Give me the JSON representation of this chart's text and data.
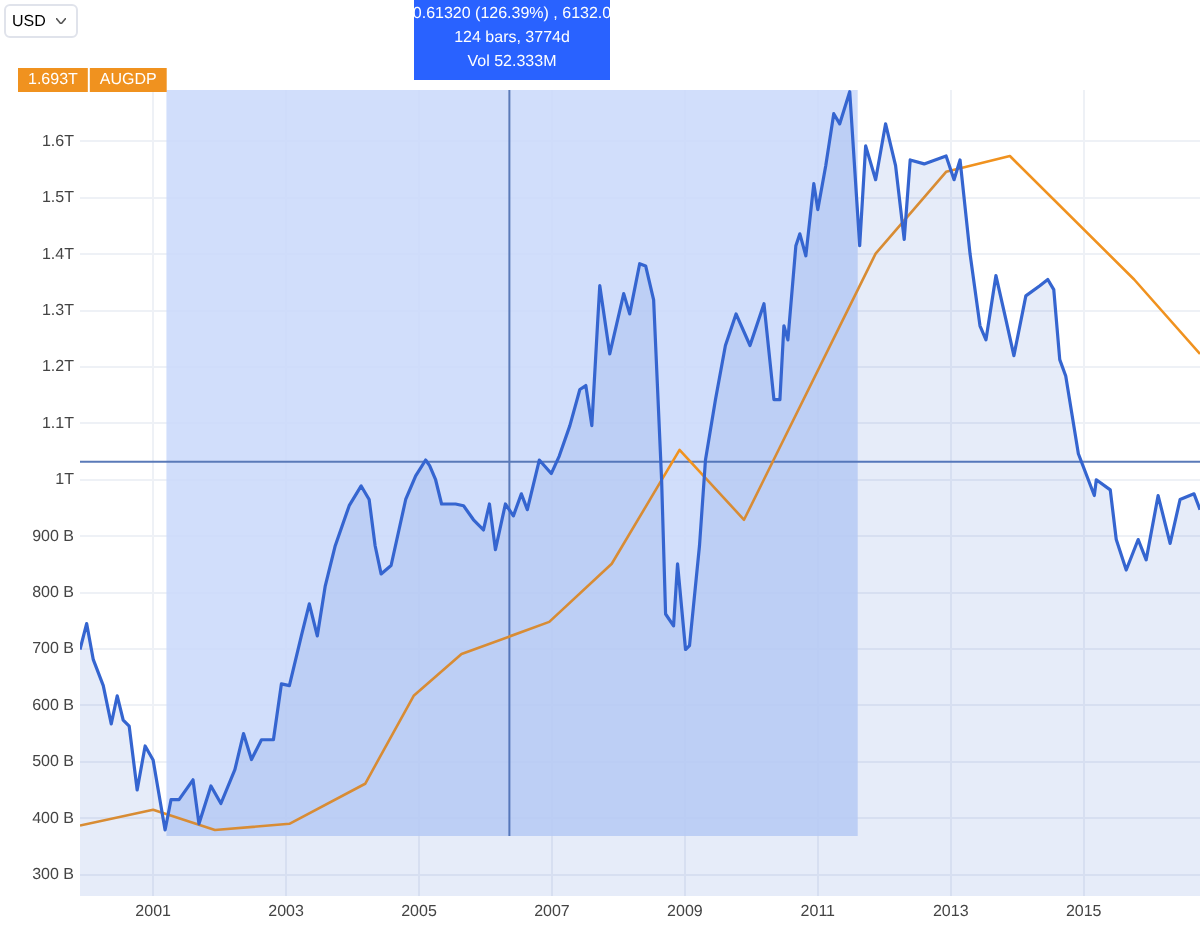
{
  "chart_data": {
    "type": "area",
    "annotations": [
      "USD",
      "0.61320 (126.39%) , 6132.0",
      "124 bars, 3774d",
      "Vol 52.333M",
      "1.693T"
    ],
    "xlim": [
      1999.9,
      2016.75
    ],
    "xticks": [
      2001,
      2003,
      2005,
      2007,
      2009,
      2011,
      2013,
      2015
    ],
    "ylim": [
      262000000000.0,
      1691000000000.0
    ],
    "yticks": [
      {
        "value": 300000000000.0,
        "label": "300 B"
      },
      {
        "value": 400000000000.0,
        "label": "400 B"
      },
      {
        "value": 500000000000.0,
        "label": "500 B"
      },
      {
        "value": 600000000000.0,
        "label": "600 B"
      },
      {
        "value": 700000000000.0,
        "label": "700 B"
      },
      {
        "value": 800000000000.0,
        "label": "800 B"
      },
      {
        "value": 900000000000.0,
        "label": "900 B"
      },
      {
        "value": 1000000000000.0,
        "label": "1T"
      },
      {
        "value": 1100000000000.0,
        "label": "1.1T"
      },
      {
        "value": 1200000000000.0,
        "label": "1.2T"
      },
      {
        "value": 1300000000000.0,
        "label": "1.3T"
      },
      {
        "value": 1400000000000.0,
        "label": "1.4T"
      },
      {
        "value": 1500000000000.0,
        "label": "1.5T"
      },
      {
        "value": 1600000000000.0,
        "label": "1.6T"
      }
    ],
    "grid": true,
    "legend": "top left",
    "bands": [
      {
        "axis": "x",
        "from": 2001.2,
        "to": 2011.6,
        "color": "#c9d8fa"
      }
    ],
    "ref_lines": [
      {
        "axis": "x",
        "value": 2006.36,
        "color": "#5a7ab8"
      },
      {
        "axis": "y",
        "value": 1032000000000.0,
        "color": "#5a7ab8"
      }
    ],
    "series": [
      {
        "color": "#3565d0",
        "x": [
          1999.9,
          2000.0,
          2000.1,
          2000.25,
          2000.37,
          2000.46,
          2000.55,
          2000.64,
          2000.76,
          2000.88,
          2001.0,
          2001.18,
          2001.27,
          2001.39,
          2001.6,
          2001.69,
          2001.87,
          2002.02,
          2002.23,
          2002.36,
          2002.48,
          2002.63,
          2002.81,
          2002.93,
          2003.05,
          2003.23,
          2003.35,
          2003.47,
          2003.59,
          2003.74,
          2003.95,
          2004.13,
          2004.25,
          2004.34,
          2004.43,
          2004.58,
          2004.8,
          2004.95,
          2005.1,
          2005.16,
          2005.25,
          2005.34,
          2005.55,
          2005.67,
          2005.82,
          2005.97,
          2006.06,
          2006.15,
          2006.3,
          2006.42,
          2006.54,
          2006.63,
          2006.81,
          2006.99,
          2007.11,
          2007.27,
          2007.42,
          2007.51,
          2007.6,
          2007.69,
          2007.72,
          2007.87,
          2008.08,
          2008.17,
          2008.32,
          2008.41,
          2008.53,
          2008.65,
          2008.71,
          2008.83,
          2008.89,
          2009.01,
          2009.07,
          2009.22,
          2009.31,
          2009.46,
          2009.61,
          2009.77,
          2009.98,
          2010.19,
          2010.34,
          2010.43,
          2010.49,
          2010.55,
          2010.67,
          2010.73,
          2010.82,
          2010.94,
          2011.0,
          2011.12,
          2011.24,
          2011.33,
          2011.48,
          2011.63,
          2011.72,
          2011.87,
          2012.02,
          2012.17,
          2012.3,
          2012.39,
          2012.6,
          2012.93,
          2013.05,
          2013.14,
          2013.29,
          2013.44,
          2013.53,
          2013.68,
          2013.83,
          2013.95,
          2014.13,
          2014.34,
          2014.46,
          2014.55,
          2014.64,
          2014.73,
          2014.92,
          2015.16,
          2015.19,
          2015.4,
          2015.49,
          2015.64,
          2015.82,
          2015.94,
          2016.12,
          2016.3,
          2016.45,
          2016.66,
          2016.75
        ],
        "values": [
          699000000000.0,
          745000000000.0,
          681000000000.0,
          635000000000.0,
          567000000000.0,
          617000000000.0,
          574000000000.0,
          563000000000.0,
          450000000000.0,
          528000000000.0,
          503000000000.0,
          379000000000.0,
          433000000000.0,
          433000000000.0,
          468000000000.0,
          390000000000.0,
          457000000000.0,
          426000000000.0,
          486000000000.0,
          550000000000.0,
          504000000000.0,
          539000000000.0,
          539000000000.0,
          638000000000.0,
          635000000000.0,
          723000000000.0,
          780000000000.0,
          723000000000.0,
          812000000000.0,
          883000000000.0,
          954000000000.0,
          989000000000.0,
          965000000000.0,
          883000000000.0,
          833000000000.0,
          848000000000.0,
          965000000000.0,
          1007000000000.0,
          1035000000000.0,
          1025000000000.0,
          1000000000000.0,
          957000000000.0,
          957000000000.0,
          954000000000.0,
          929000000000.0,
          911000000000.0,
          957000000000.0,
          876000000000.0,
          957000000000.0,
          936000000000.0,
          975000000000.0,
          947000000000.0,
          1035000000000.0,
          1011000000000.0,
          1042000000000.0,
          1096000000000.0,
          1160000000000.0,
          1167000000000.0,
          1096000000000.0,
          1284000000000.0,
          1344000000000.0,
          1223000000000.0,
          1330000000000.0,
          1294000000000.0,
          1383000000000.0,
          1379000000000.0,
          1319000000000.0,
          1000000000000.0,
          762000000000.0,
          741000000000.0,
          851000000000.0,
          699000000000.0,
          706000000000.0,
          883000000000.0,
          1035000000000.0,
          1142000000000.0,
          1238000000000.0,
          1294000000000.0,
          1238000000000.0,
          1312000000000.0,
          1142000000000.0,
          1142000000000.0,
          1273000000000.0,
          1248000000000.0,
          1415000000000.0,
          1436000000000.0,
          1397000000000.0,
          1525000000000.0,
          1479000000000.0,
          1557000000000.0,
          1649000000000.0,
          1631000000000.0,
          1688000000000.0,
          1415000000000.0,
          1592000000000.0,
          1532000000000.0,
          1631000000000.0,
          1557000000000.0,
          1426000000000.0,
          1567000000000.0,
          1560000000000.0,
          1574000000000.0,
          1532000000000.0,
          1567000000000.0,
          1401000000000.0,
          1273000000000.0,
          1248000000000.0,
          1362000000000.0,
          1284000000000.0,
          1220000000000.0,
          1326000000000.0,
          1344000000000.0,
          1355000000000.0,
          1337000000000.0,
          1213000000000.0,
          1184000000000.0,
          1046000000000.0,
          972000000000.0,
          1000000000000.0,
          982000000000.0,
          894000000000.0,
          840000000000.0,
          894000000000.0,
          858000000000.0,
          972000000000.0,
          887000000000.0,
          965000000000.0,
          975000000000.0,
          947000000000.0
        ]
      },
      {
        "type": "line",
        "name": "AUGDP",
        "color": "#f0921f",
        "x": [
          1999.9,
          2001.0,
          2001.93,
          2003.05,
          2004.19,
          2004.92,
          2005.64,
          2006.96,
          2007.9,
          2008.92,
          2009.89,
          2011.87,
          2012.93,
          2013.89,
          2015.76,
          2016.75
        ],
        "values": [
          387000000000.0,
          415000000000.0,
          379000000000.0,
          390000000000.0,
          461000000000.0,
          617000000000.0,
          691000000000.0,
          748000000000.0,
          851000000000.0,
          1053000000000.0,
          929000000000.0,
          1401000000000.0,
          1546000000000.0,
          1574000000000.0,
          1355000000000.0,
          1223000000000.0
        ]
      }
    ]
  }
}
